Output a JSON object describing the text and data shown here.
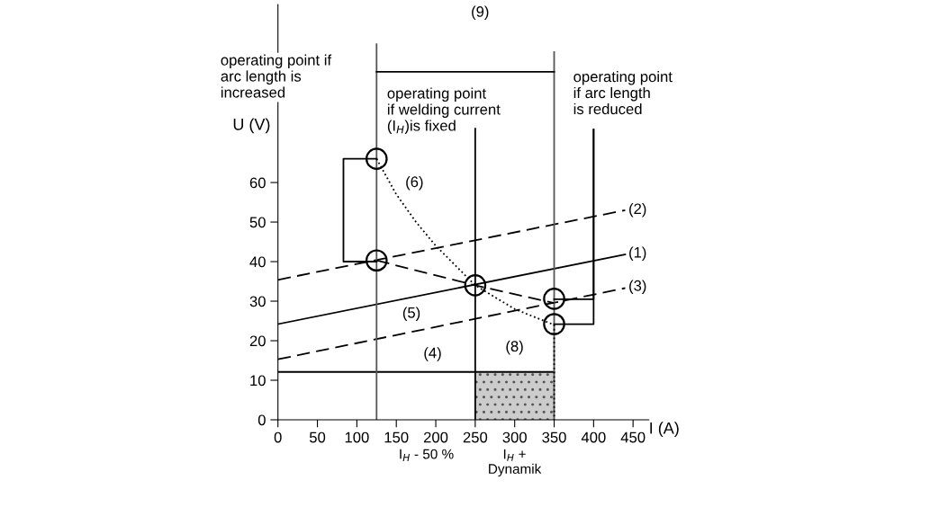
{
  "chart_data": {
    "type": "line",
    "xlabel": "I (A)",
    "ylabel": "U (V)",
    "xlim": [
      0,
      470
    ],
    "ylim": [
      0,
      105
    ],
    "xticks": [
      0,
      50,
      100,
      150,
      200,
      250,
      300,
      350,
      400,
      450
    ],
    "yticks": [
      0,
      10,
      20,
      30,
      40,
      50,
      60
    ],
    "grid": false,
    "legend": false,
    "series": [
      {
        "color": "#000000",
        "line_style": "solid",
        "x": [
          0,
          440
        ],
        "values": [
          24.2,
          41.8
        ]
      },
      {
        "color": "#000000",
        "line_style": "dashed",
        "x": [
          0,
          440
        ],
        "values": [
          35.4,
          53
        ]
      },
      {
        "color": "#000000",
        "line_style": "dashed",
        "x": [
          0,
          440
        ],
        "values": [
          15.3,
          33.3
        ]
      },
      {
        "color": "#000000",
        "line_style": "solid",
        "x": [
          0,
          350
        ],
        "values": [
          12.1,
          12.1
        ]
      },
      {
        "color": "#555555",
        "line_style": "solid",
        "x": [
          125,
          125
        ],
        "values": [
          0,
          95
        ]
      },
      {
        "color": "#555555",
        "line_style": "solid",
        "x": [
          350,
          350
        ],
        "values": [
          0,
          93
        ]
      },
      {
        "color": "#000000",
        "line_style": "solid",
        "x": [
          250,
          250
        ],
        "values": [
          0,
          73.6
        ]
      },
      {
        "color": "#000000",
        "line_style": "solid",
        "x": [
          125,
          83,
          83,
          125
        ],
        "values": [
          66,
          66,
          40,
          40
        ]
      },
      {
        "color": "#000000",
        "line_style": "solid",
        "x": [
          350,
          400,
          400
        ],
        "values": [
          30.5,
          30.5,
          73.4
        ]
      },
      {
        "color": "#000000",
        "line_style": "solid",
        "x": [
          350,
          400,
          400
        ],
        "values": [
          24.2,
          24.2,
          73.4
        ]
      },
      {
        "color": "#000000",
        "line_style": "dashed",
        "x": [
          125,
          250,
          350
        ],
        "values": [
          40.3,
          34,
          29.5
        ]
      },
      {
        "color": "#000000",
        "line_style": "dotted",
        "x": [
          125,
          150,
          175,
          200,
          225,
          250,
          300,
          350,
          350
        ],
        "values": [
          66,
          57,
          50,
          44,
          39,
          34,
          28,
          24,
          0
        ]
      },
      {
        "color": "#000000",
        "line_style": "solid",
        "x": [
          125,
          350
        ],
        "values": [
          88,
          88
        ]
      },
      {
        "type": "area",
        "color": "#cccccc",
        "x": [
          250,
          350
        ],
        "values": [
          12,
          12
        ]
      },
      {
        "type": "scatter",
        "color": "#000000",
        "marker": "circle",
        "x": [
          125,
          125,
          250,
          350,
          350
        ],
        "values": [
          66,
          40.3,
          34,
          30.6,
          24.2
        ]
      }
    ],
    "annotations": [
      "operating point if\narc length is\nincreased",
      "operating point\nif welding current\n(I$_{H}$)is fixed",
      "operating point\nif arc length\nis reduced",
      "(9)",
      "(1)",
      "(2)",
      "(3)",
      "(4)",
      "(5)",
      "(6)",
      "(8)",
      "I$_{H}$ - 50 %",
      "I$_{H}$ +\nDynamik"
    ]
  }
}
